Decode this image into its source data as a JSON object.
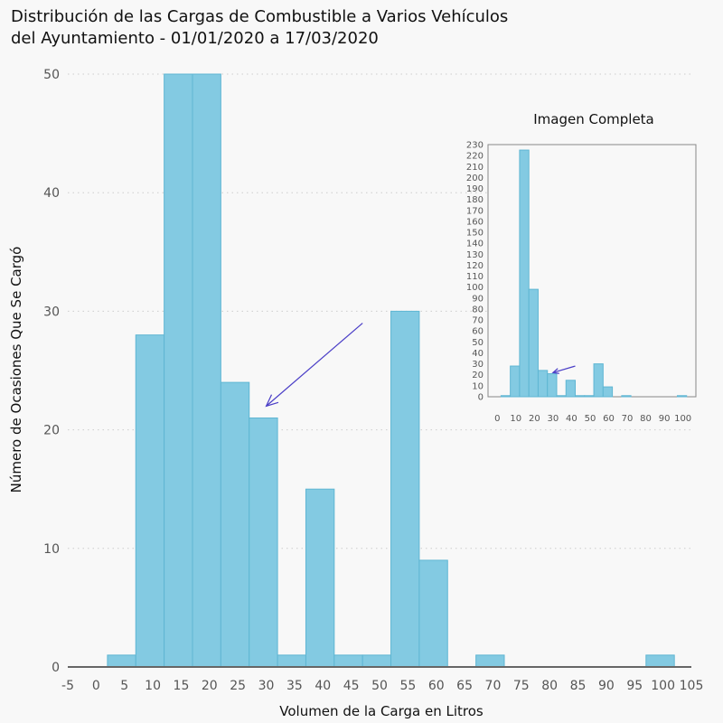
{
  "chart_data": [
    {
      "type": "bar",
      "title_lines": [
        "Distribución de las Cargas de Combustible a Varios Vehículos",
        "del Ayuntamiento - 01/01/2020 a 17/03/2020"
      ],
      "xlabel": "Volumen de la Carga en Litros",
      "ylabel": "Número de Ocasiones Que Se Cargó",
      "xlim": [
        -5,
        105
      ],
      "ylim": [
        0,
        50
      ],
      "xticks": [
        -5,
        0,
        5,
        10,
        15,
        20,
        25,
        30,
        35,
        40,
        45,
        50,
        55,
        60,
        65,
        70,
        75,
        80,
        85,
        90,
        95,
        100,
        105
      ],
      "yticks": [
        0,
        10,
        20,
        30,
        40,
        50
      ],
      "grid": true,
      "bin_width": 5,
      "bins": [
        {
          "start": 2,
          "value": 1
        },
        {
          "start": 7,
          "value": 28
        },
        {
          "start": 12,
          "value": 50
        },
        {
          "start": 17,
          "value": 50
        },
        {
          "start": 22,
          "value": 24
        },
        {
          "start": 27,
          "value": 21
        },
        {
          "start": 32,
          "value": 1
        },
        {
          "start": 37,
          "value": 15
        },
        {
          "start": 42,
          "value": 1
        },
        {
          "start": 47,
          "value": 1
        },
        {
          "start": 52,
          "value": 30
        },
        {
          "start": 57,
          "value": 9
        },
        {
          "start": 67,
          "value": 1
        },
        {
          "start": 97,
          "value": 1
        }
      ],
      "annotation": {
        "from": [
          47,
          29
        ],
        "to": [
          30,
          22
        ],
        "color": "#4b3fc7"
      }
    },
    {
      "type": "bar",
      "title": "Imagen Completa",
      "xlim": [
        -5,
        107
      ],
      "ylim": [
        0,
        230
      ],
      "xticks": [
        0,
        10,
        20,
        30,
        40,
        50,
        60,
        70,
        80,
        90,
        100
      ],
      "yticks": [
        0,
        10,
        20,
        30,
        40,
        50,
        60,
        70,
        80,
        90,
        100,
        110,
        120,
        130,
        140,
        150,
        160,
        170,
        180,
        190,
        200,
        210,
        220,
        230
      ],
      "bin_width": 5,
      "bins": [
        {
          "start": 2,
          "value": 1
        },
        {
          "start": 7,
          "value": 28
        },
        {
          "start": 12,
          "value": 225
        },
        {
          "start": 17,
          "value": 98
        },
        {
          "start": 22,
          "value": 24
        },
        {
          "start": 27,
          "value": 21
        },
        {
          "start": 32,
          "value": 1
        },
        {
          "start": 37,
          "value": 15
        },
        {
          "start": 42,
          "value": 1
        },
        {
          "start": 47,
          "value": 1
        },
        {
          "start": 52,
          "value": 30
        },
        {
          "start": 57,
          "value": 9
        },
        {
          "start": 67,
          "value": 1
        },
        {
          "start": 97,
          "value": 1
        }
      ],
      "annotation": {
        "from": [
          42,
          28
        ],
        "to": [
          30,
          22
        ],
        "color": "#4b3fc7"
      }
    }
  ],
  "colors": {
    "bar_fill": "#83cae2",
    "bar_stroke": "#5fb6d3",
    "axis": "#666666",
    "arrow": "#4b3fc7"
  }
}
